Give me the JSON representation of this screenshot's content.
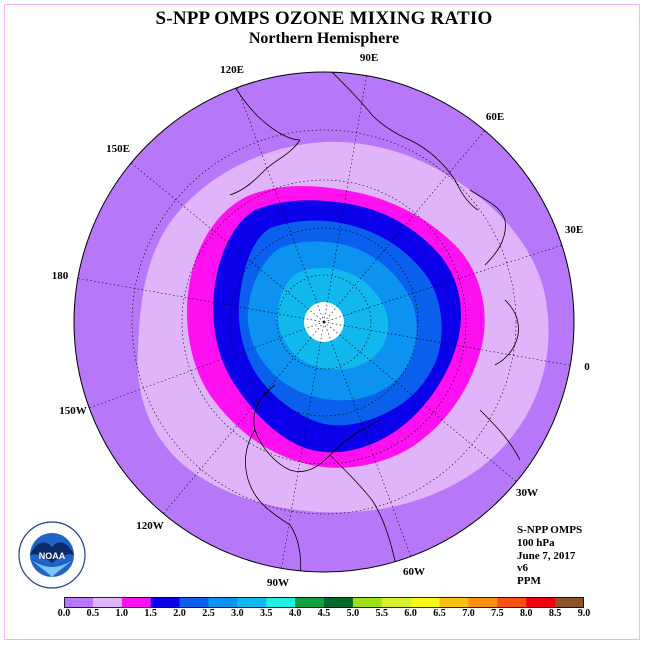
{
  "title": "S-NPP OMPS OZONE MIXING RATIO",
  "subtitle": "Northern Hemisphere",
  "longitude_labels": [
    "90E",
    "60E",
    "30E",
    "0",
    "30W",
    "60W",
    "90W",
    "120W",
    "150W",
    "180",
    "150E",
    "120E"
  ],
  "info": {
    "instrument": "S-NPP OMPS",
    "pressure": "100 hPa",
    "date": "June 7, 2017",
    "version": "v6",
    "units": "PPM"
  },
  "colorbar": {
    "ticks": [
      "0.0",
      "0.5",
      "1.0",
      "1.5",
      "2.0",
      "2.5",
      "3.0",
      "3.5",
      "4.0",
      "4.5",
      "5.0",
      "5.5",
      "6.0",
      "6.5",
      "7.0",
      "7.5",
      "8.0",
      "8.5",
      "9.0"
    ],
    "colors": [
      "#b678f8",
      "#e0b4fa",
      "#ff10f0",
      "#0a00ea",
      "#0a60ec",
      "#0c92f0",
      "#10b8ee",
      "#20eee0",
      "#10a040",
      "#006a2c",
      "#a0e018",
      "#d8f030",
      "#f8f818",
      "#f8c010",
      "#f89010",
      "#f85010",
      "#f00010",
      "#8a5428"
    ]
  },
  "logo": {
    "text": "NOAA",
    "ring_text": "NATIONAL OCEANIC AND ATMOSPHERIC ADMINISTRATION",
    "ring_text_bottom": "U.S. DEPARTMENT OF COMMERCE"
  }
}
